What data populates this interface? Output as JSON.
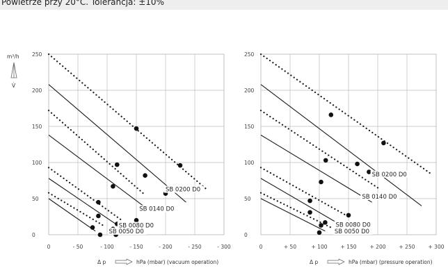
{
  "caption": "Powietrze przy 20°C. Tolerancja: ±10%",
  "y_unit": "m³/h",
  "y_symbol": "V̇",
  "chart_data": [
    {
      "type": "line",
      "id": "vacuum",
      "xlabel": "Δ p  hPa (mbar) (vacuum operation)",
      "x_ticks": [
        0,
        50,
        100,
        150,
        200,
        250,
        300
      ],
      "x_tick_labels": [
        "0",
        "- 50",
        "- 100",
        "- 150",
        "- 200",
        "- 250",
        "- 300"
      ],
      "y_ticks": [
        0,
        50,
        100,
        150,
        200,
        250
      ],
      "xlim": [
        0,
        300
      ],
      "ylim": [
        0,
        250
      ],
      "grid": true,
      "series": [
        {
          "name": "SB 0200 D0",
          "style": "dotted",
          "points": [
            [
              0,
              250
            ],
            [
              270,
              63
            ]
          ]
        },
        {
          "name": "",
          "style": "solid",
          "points": [
            [
              0,
              208
            ],
            [
              235,
              45
            ]
          ]
        },
        {
          "name": "SB 0140 D0",
          "style": "dotted",
          "points": [
            [
              0,
              172
            ],
            [
              165,
              55
            ]
          ]
        },
        {
          "name": "",
          "style": "solid",
          "points": [
            [
              0,
              138
            ],
            [
              165,
              38
            ]
          ]
        },
        {
          "name": "SB 0080 D0",
          "style": "dotted",
          "points": [
            [
              0,
              93
            ],
            [
              125,
              20
            ]
          ]
        },
        {
          "name": "",
          "style": "solid",
          "points": [
            [
              0,
              78
            ],
            [
              120,
              12
            ]
          ]
        },
        {
          "name": "SB 0050 D0",
          "style": "dotted",
          "points": [
            [
              0,
              58
            ],
            [
              95,
              12
            ]
          ]
        },
        {
          "name": "",
          "style": "solid",
          "points": [
            [
              0,
              50
            ],
            [
              80,
              5
            ]
          ]
        }
      ],
      "markers": [
        [
          150,
          147
        ],
        [
          225,
          96
        ],
        [
          117,
          97
        ],
        [
          165,
          82
        ],
        [
          200,
          57
        ],
        [
          110,
          67
        ],
        [
          150,
          20
        ],
        [
          85,
          45
        ],
        [
          85,
          26
        ],
        [
          117,
          15
        ],
        [
          75,
          10
        ],
        [
          110,
          8
        ],
        [
          88,
          0
        ],
        [
          115,
          0
        ]
      ],
      "curve_labels": [
        {
          "text": "SB 0200 D0",
          "x": 200,
          "y": 60
        },
        {
          "text": "SB 0140 D0",
          "x": 155,
          "y": 33
        },
        {
          "text": "SB 0080 D0",
          "x": 120,
          "y": 10
        },
        {
          "text": "SB 0050 D0",
          "x": 103,
          "y": 2
        }
      ]
    },
    {
      "type": "line",
      "id": "pressure",
      "xlabel": "Δ p  hPa (mbar) (pressure operation)",
      "x_ticks": [
        0,
        50,
        100,
        150,
        200,
        250,
        300
      ],
      "x_tick_labels": [
        "0",
        "+ 50",
        "+ 100",
        "+ 150",
        "+ 200",
        "+ 250",
        "+ 300"
      ],
      "y_ticks": [
        0,
        50,
        100,
        150,
        200,
        250
      ],
      "xlim": [
        0,
        300
      ],
      "ylim": [
        0,
        250
      ],
      "grid": true,
      "series": [
        {
          "name": "SB 0200 D0",
          "style": "dotted",
          "points": [
            [
              0,
              250
            ],
            [
              290,
              85
            ]
          ]
        },
        {
          "name": "",
          "style": "solid",
          "points": [
            [
              0,
              208
            ],
            [
              275,
              40
            ]
          ]
        },
        {
          "name": "SB 0140 D0",
          "style": "dotted",
          "points": [
            [
              0,
              172
            ],
            [
              200,
              65
            ]
          ]
        },
        {
          "name": "",
          "style": "solid",
          "points": [
            [
              0,
              138
            ],
            [
              190,
              45
            ]
          ]
        },
        {
          "name": "SB 0080 D0",
          "style": "dotted",
          "points": [
            [
              0,
              93
            ],
            [
              150,
              25
            ]
          ]
        },
        {
          "name": "",
          "style": "solid",
          "points": [
            [
              0,
              78
            ],
            [
              140,
              12
            ]
          ]
        },
        {
          "name": "SB 0050 D0",
          "style": "dotted",
          "points": [
            [
              0,
              58
            ],
            [
              120,
              10
            ]
          ]
        },
        {
          "name": "",
          "style": "solid",
          "points": [
            [
              0,
              50
            ],
            [
              110,
              5
            ]
          ]
        }
      ],
      "markers": [
        [
          120,
          166
        ],
        [
          210,
          127
        ],
        [
          111,
          103
        ],
        [
          165,
          98
        ],
        [
          185,
          87
        ],
        [
          103,
          73
        ],
        [
          150,
          27
        ],
        [
          84,
          47
        ],
        [
          84,
          31
        ],
        [
          110,
          17
        ],
        [
          103,
          13
        ],
        [
          100,
          3
        ]
      ],
      "curve_labels": [
        {
          "text": "SB 0200 D0",
          "x": 190,
          "y": 81
        },
        {
          "text": "SB 0140 D0",
          "x": 173,
          "y": 50
        },
        {
          "text": "SB 0080 D0",
          "x": 128,
          "y": 11
        },
        {
          "text": "SB 0050 D0",
          "x": 126,
          "y": 2
        }
      ]
    }
  ]
}
